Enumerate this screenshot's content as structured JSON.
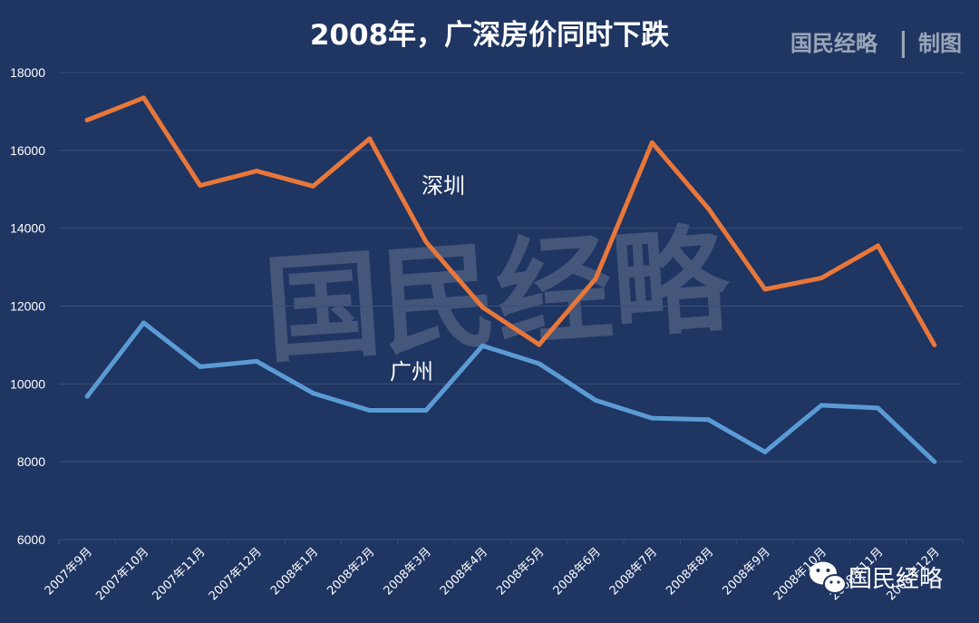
{
  "title": "2008年，广深房价同时下跌",
  "brand": {
    "name": "国民经略",
    "separator": "|",
    "suffix": "制图"
  },
  "watermark_text": "国民经略",
  "wechat_logo_text": "国民经略",
  "colors": {
    "background": "#1f3562",
    "gridline": "#3a4f7a",
    "shenzhen": "#e8773a",
    "guangzhou": "#5b9bd5"
  },
  "chart_data": {
    "type": "line",
    "title": "2008年，广深房价同时下跌",
    "xlabel": "",
    "ylabel": "",
    "ylim": [
      6000,
      18000
    ],
    "yticks": [
      6000,
      8000,
      10000,
      12000,
      14000,
      16000,
      18000
    ],
    "grid": true,
    "legend": "none",
    "categories": [
      "2007年9月",
      "2007年10月",
      "2007年11月",
      "2007年12月",
      "2008年1月",
      "2008年2月",
      "2008年3月",
      "2008年4月",
      "2008年5月",
      "2008年6月",
      "2008年7月",
      "2008年8月",
      "2008年9月",
      "2008年10月",
      "2008年11月",
      "2008年12月"
    ],
    "series": [
      {
        "name": "深圳",
        "color": "#e8773a",
        "values": [
          16780,
          17350,
          15100,
          15470,
          15080,
          16300,
          13650,
          11970,
          11010,
          12700,
          16200,
          14500,
          12430,
          12720,
          13550,
          11000
        ]
      },
      {
        "name": "广州",
        "color": "#5b9bd5",
        "values": [
          9680,
          11570,
          10440,
          10580,
          9760,
          9320,
          9320,
          10980,
          10520,
          9580,
          9120,
          9080,
          8250,
          9450,
          9380,
          8000
        ]
      }
    ]
  }
}
